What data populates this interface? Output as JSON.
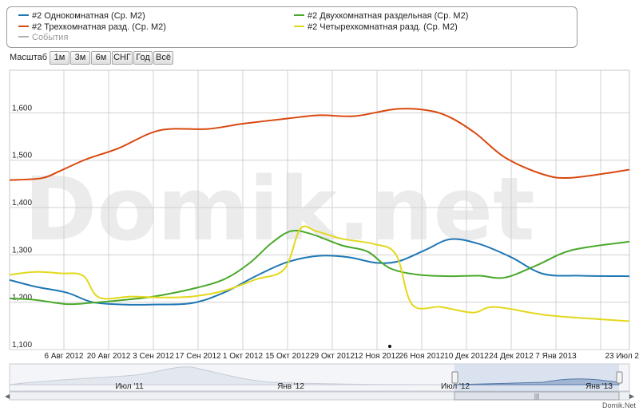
{
  "legend": {
    "items": [
      {
        "label": "#2 Однокомнатная (Ср. М2)",
        "color": "#1f77b4"
      },
      {
        "label": "#2 Двухкомнатная раздельная (Ср. М2)",
        "color": "#4aa82a"
      },
      {
        "label": "#2 Трехкомнатная разд. (Ср. М2)",
        "color": "#d9480f"
      },
      {
        "label": "#2 Четырехкомнатная разд. (Ср. М2)",
        "color": "#e3d81c"
      },
      {
        "label": "События",
        "color": "#b0b0b0"
      }
    ]
  },
  "zoom": {
    "label": "Масштаб",
    "buttons": [
      "1м",
      "3м",
      "6м",
      "СНГ",
      "Год",
      "Всё"
    ]
  },
  "watermark": "Domik.net",
  "credit": "Domik.Net",
  "navigator": {
    "labels": [
      "Июл '11",
      "Янв '12",
      "Июл '12",
      "Янв '13"
    ]
  },
  "chart_data": {
    "type": "line",
    "x_type": "date",
    "x_ticks": [
      "6 Авг 2012",
      "20 Авг 2012",
      "3 Сен 2012",
      "17 Сен 2012",
      "1 Окт 2012",
      "15 Окт 2012",
      "29 Окт 2012",
      "12 Ноя 2012",
      "26 Ноя 2012",
      "10 Дек 2012",
      "24 Дек 2012",
      "7 Янв 2013",
      "23 Июл 2"
    ],
    "x_range": [
      "2012-07-20",
      "2013-01-30"
    ],
    "y_ticks": [
      "1,100",
      "1,200",
      "1,300",
      "1,400",
      "1,500",
      "1,600"
    ],
    "ylim": [
      1100,
      1690
    ],
    "grid": true,
    "series": [
      {
        "name": "#2 Однокомнатная (Ср. М2)",
        "color": "#1f77b4",
        "x": [
          "2012-07-20",
          "2012-07-28",
          "2012-08-07",
          "2012-08-15",
          "2012-08-25",
          "2012-09-03",
          "2012-09-15",
          "2012-09-25",
          "2012-10-05",
          "2012-10-15",
          "2012-10-25",
          "2012-11-03",
          "2012-11-12",
          "2012-11-19",
          "2012-11-27",
          "2012-12-05",
          "2012-12-14",
          "2012-12-24",
          "2013-01-03",
          "2013-01-15",
          "2013-01-30"
        ],
        "y": [
          1247,
          1233,
          1220,
          1200,
          1195,
          1195,
          1198,
          1220,
          1255,
          1285,
          1298,
          1295,
          1283,
          1287,
          1310,
          1333,
          1323,
          1295,
          1260,
          1256,
          1255
        ]
      },
      {
        "name": "#2 Двухкомнатная раздельная (Ср. М2)",
        "color": "#4aa82a",
        "x": [
          "2012-07-20",
          "2012-07-28",
          "2012-08-07",
          "2012-08-15",
          "2012-08-25",
          "2012-09-03",
          "2012-09-15",
          "2012-09-25",
          "2012-10-03",
          "2012-10-10",
          "2012-10-16",
          "2012-10-22",
          "2012-11-01",
          "2012-11-09",
          "2012-11-16",
          "2012-11-25",
          "2012-12-05",
          "2012-12-14",
          "2012-12-22",
          "2013-01-01",
          "2013-01-12",
          "2013-01-30"
        ],
        "y": [
          1208,
          1205,
          1196,
          1199,
          1205,
          1212,
          1228,
          1248,
          1282,
          1325,
          1350,
          1345,
          1320,
          1307,
          1272,
          1258,
          1255,
          1256,
          1252,
          1278,
          1310,
          1328
        ]
      },
      {
        "name": "#2 Трехкомнатная разд. (Ср. М2)",
        "color": "#d9480f",
        "x": [
          "2012-07-20",
          "2012-07-30",
          "2012-08-05",
          "2012-08-13",
          "2012-08-23",
          "2012-09-05",
          "2012-09-20",
          "2012-10-01",
          "2012-10-15",
          "2012-10-25",
          "2012-11-05",
          "2012-11-18",
          "2012-11-28",
          "2012-12-05",
          "2012-12-13",
          "2012-12-22",
          "2013-01-03",
          "2013-01-12",
          "2013-01-30"
        ],
        "y": [
          1458,
          1462,
          1478,
          1502,
          1525,
          1563,
          1566,
          1577,
          1588,
          1595,
          1593,
          1608,
          1605,
          1590,
          1556,
          1506,
          1470,
          1463,
          1480
        ]
      },
      {
        "name": "#2 Четырехкомнатная разд. (Ср. М2)",
        "color": "#e3d81c",
        "x": [
          "2012-07-20",
          "2012-07-28",
          "2012-08-05",
          "2012-08-12",
          "2012-08-17",
          "2012-08-27",
          "2012-09-05",
          "2012-09-15",
          "2012-09-25",
          "2012-10-05",
          "2012-10-14",
          "2012-10-19",
          "2012-10-24",
          "2012-11-01",
          "2012-11-11",
          "2012-11-18",
          "2012-11-23",
          "2012-12-02",
          "2012-12-12",
          "2012-12-19",
          "2013-01-05",
          "2013-01-30"
        ],
        "y": [
          1258,
          1264,
          1261,
          1256,
          1210,
          1212,
          1210,
          1212,
          1224,
          1248,
          1270,
          1355,
          1350,
          1334,
          1323,
          1300,
          1195,
          1190,
          1178,
          1190,
          1172,
          1160
        ]
      }
    ]
  }
}
